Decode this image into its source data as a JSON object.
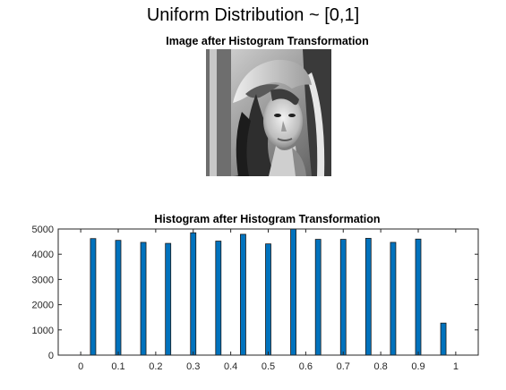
{
  "figure": {
    "suptitle": "Uniform Distribution ~ [0,1]",
    "image_title": "Image after Histogram Transformation",
    "image_description": "grayscale portrait photo (Lena) after histogram equalization"
  },
  "chart_data": {
    "type": "bar",
    "title": "Histogram after Histogram Transformation",
    "xlabel": "",
    "ylabel": "",
    "xlim": [
      -0.06,
      1.06
    ],
    "ylim": [
      0,
      5000
    ],
    "xticks": [
      0,
      0.1,
      0.2,
      0.3,
      0.4,
      0.5,
      0.6,
      0.7,
      0.8,
      0.9,
      1
    ],
    "xtick_labels": [
      "0",
      "0.1",
      "0.2",
      "0.3",
      "0.4",
      "0.5",
      "0.6",
      "0.7",
      "0.8",
      "0.9",
      "1"
    ],
    "yticks": [
      0,
      1000,
      2000,
      3000,
      4000,
      5000
    ],
    "ytick_labels": [
      "0",
      "1000",
      "2000",
      "3000",
      "4000",
      "5000"
    ],
    "bar_color": "#0072BD",
    "x": [
      0.033,
      0.1,
      0.167,
      0.233,
      0.3,
      0.367,
      0.433,
      0.5,
      0.567,
      0.633,
      0.7,
      0.767,
      0.833,
      0.9,
      0.967
    ],
    "values": [
      4620,
      4550,
      4470,
      4430,
      4850,
      4520,
      4790,
      4410,
      5000,
      4590,
      4590,
      4630,
      4470,
      4600,
      1270
    ],
    "grid": false
  }
}
